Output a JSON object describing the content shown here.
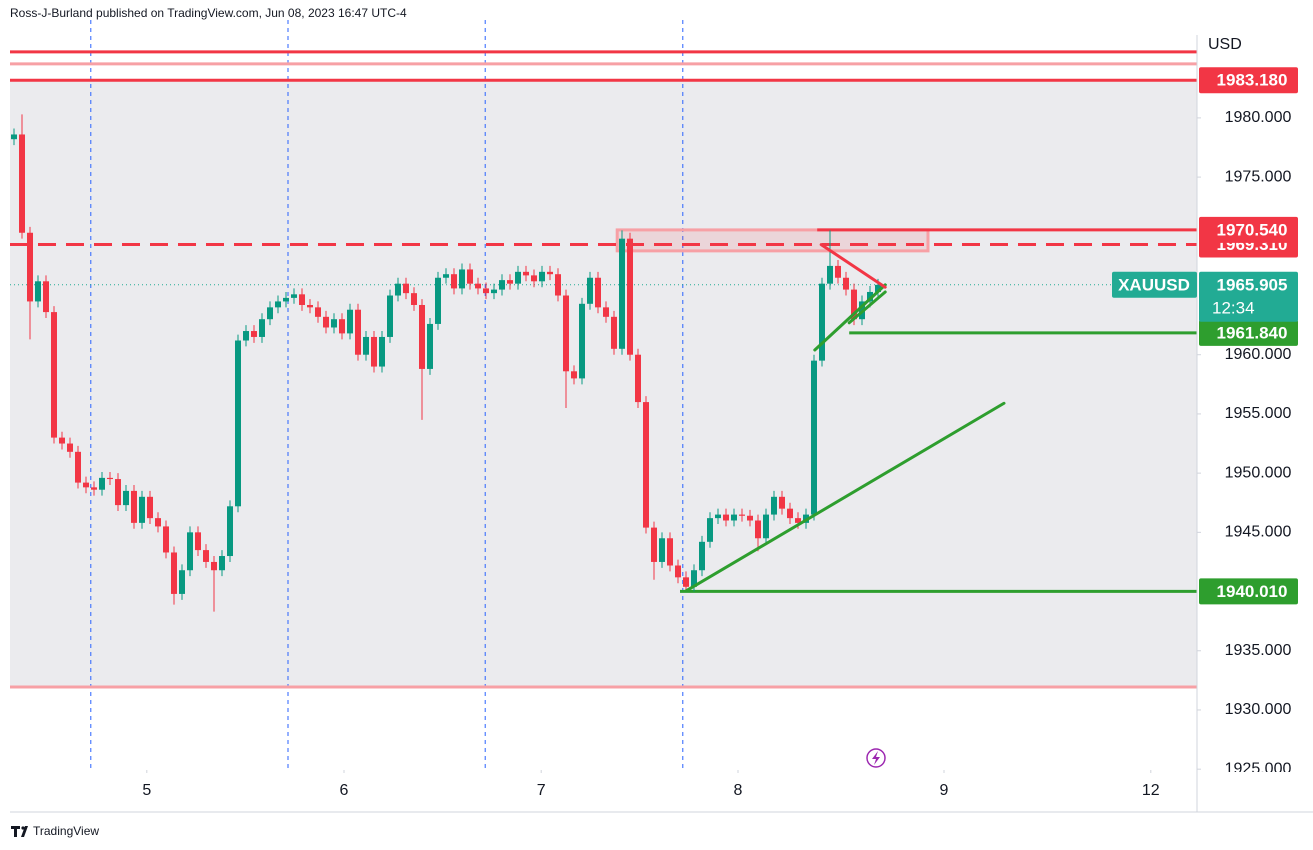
{
  "chart_data": {
    "type": "candlestick",
    "title": "Ross-J-Burland published on TradingView.com, Jun 08, 2023 16:47 UTC-4",
    "currency": "USD",
    "brand": "TradingView",
    "symbol": "XAUUSD",
    "countdown": "12:34",
    "last_price": {
      "value": 1965.905,
      "label": "1965.905"
    },
    "up_color": "#089981",
    "down_color": "#f23645",
    "last_color": "#22ab94",
    "open": [
      1978.2,
      1978.6,
      1970.3,
      1964.5,
      1966.2,
      1963.6,
      1953.0,
      1952.5,
      1951.8,
      1949.2,
      1948.8,
      1948.6,
      1949.6,
      1949.5,
      1947.3,
      1948.5,
      1945.8,
      1948.0,
      1946.2,
      1945.5,
      1943.3,
      1939.8,
      1941.8,
      1945.0,
      1943.5,
      1942.5,
      1941.8,
      1943.0,
      1947.2,
      1961.2,
      1962.0,
      1961.5,
      1963.0,
      1964.0,
      1964.5,
      1964.8,
      1965.1,
      1964.2,
      1964.0,
      1963.2,
      1962.3,
      1963.0,
      1961.8,
      1963.8,
      1960.0,
      1961.5,
      1959.0,
      1961.5,
      1965.0,
      1966.0,
      1965.2,
      1964.2,
      1958.8,
      1962.6,
      1966.5,
      1966.8,
      1965.6,
      1967.2,
      1966.0,
      1965.6,
      1965.2,
      1965.5,
      1966.3,
      1966.0,
      1967.0,
      1966.7,
      1966.2,
      1967.0,
      1966.8,
      1965.0,
      1958.6,
      1958.0,
      1964.3,
      1966.5,
      1964.0,
      1963.2,
      1960.5,
      1969.8,
      1960.0,
      1956.0,
      1945.4,
      1942.5,
      1944.5,
      1942.2,
      1941.2,
      1940.4,
      1941.8,
      1944.2,
      1946.2,
      1946.5,
      1946.0,
      1946.5,
      1946.4,
      1946.0,
      1944.5,
      1946.5,
      1948.0,
      1947.0,
      1946.2,
      1945.8,
      1946.5,
      1959.5,
      1966.0,
      1967.5,
      1966.5,
      1965.5,
      1963.0,
      1964.5,
      1965.3
    ],
    "high": [
      1979.1,
      1980.3,
      1970.8,
      1966.7,
      1966.7,
      1964.1,
      1953.5,
      1953.0,
      1952.3,
      1949.7,
      1949.3,
      1950.1,
      1950.1,
      1950.0,
      1949.0,
      1949.0,
      1948.5,
      1948.5,
      1946.7,
      1946.0,
      1943.8,
      1942.3,
      1945.5,
      1945.5,
      1944.0,
      1943.0,
      1943.5,
      1947.7,
      1961.7,
      1962.5,
      1962.5,
      1963.5,
      1964.5,
      1965.0,
      1965.3,
      1965.6,
      1965.6,
      1964.7,
      1964.5,
      1963.7,
      1963.5,
      1963.5,
      1964.3,
      1964.3,
      1962.0,
      1962.0,
      1962.0,
      1965.5,
      1966.5,
      1966.5,
      1965.7,
      1964.7,
      1963.1,
      1967.0,
      1967.3,
      1967.3,
      1967.7,
      1967.7,
      1966.5,
      1966.1,
      1966.0,
      1966.8,
      1966.8,
      1967.5,
      1967.5,
      1967.2,
      1967.5,
      1967.5,
      1967.3,
      1965.5,
      1959.1,
      1964.8,
      1967.0,
      1967.0,
      1964.5,
      1963.7,
      1970.5,
      1970.3,
      1960.5,
      1956.5,
      1945.9,
      1945.0,
      1945.0,
      1942.7,
      1941.7,
      1942.3,
      1944.7,
      1946.7,
      1947.0,
      1947.0,
      1947.0,
      1947.0,
      1946.9,
      1946.5,
      1947.0,
      1948.5,
      1948.5,
      1947.5,
      1946.7,
      1947.0,
      1960.0,
      1966.5,
      1970.5,
      1968.0,
      1967.0,
      1966.0,
      1965.0,
      1965.8,
      1966.4
    ],
    "low": [
      1977.7,
      1969.8,
      1961.3,
      1964.0,
      1963.1,
      1952.5,
      1952.0,
      1951.3,
      1948.7,
      1948.3,
      1948.1,
      1948.1,
      1949.0,
      1946.8,
      1946.8,
      1945.3,
      1945.3,
      1945.7,
      1945.0,
      1942.8,
      1938.9,
      1939.3,
      1941.3,
      1943.0,
      1942.0,
      1938.3,
      1941.3,
      1942.5,
      1946.7,
      1960.7,
      1961.0,
      1961.0,
      1962.5,
      1963.5,
      1964.0,
      1964.3,
      1963.7,
      1963.5,
      1962.7,
      1961.8,
      1961.8,
      1961.3,
      1961.3,
      1959.5,
      1959.5,
      1958.5,
      1958.5,
      1961.0,
      1964.5,
      1964.7,
      1963.7,
      1954.5,
      1958.3,
      1962.1,
      1966.0,
      1965.1,
      1965.1,
      1965.5,
      1965.1,
      1964.7,
      1964.7,
      1965.0,
      1965.5,
      1965.5,
      1966.2,
      1965.7,
      1965.7,
      1966.3,
      1964.5,
      1955.5,
      1957.5,
      1957.5,
      1963.8,
      1963.5,
      1962.7,
      1960.0,
      1960.0,
      1959.5,
      1955.5,
      1944.9,
      1941.0,
      1942.0,
      1941.7,
      1940.7,
      1940.0,
      1940.0,
      1941.3,
      1943.7,
      1945.7,
      1945.5,
      1945.5,
      1945.9,
      1945.5,
      1943.4,
      1944.0,
      1946.0,
      1946.5,
      1945.7,
      1945.3,
      1945.3,
      1946.0,
      1959.0,
      1965.5,
      1966.0,
      1965.0,
      1962.5,
      1962.5,
      1964.0,
      1964.8
    ],
    "close": [
      1978.6,
      1970.3,
      1964.5,
      1966.2,
      1963.6,
      1953.0,
      1952.5,
      1951.8,
      1949.2,
      1948.8,
      1948.6,
      1949.6,
      1949.5,
      1947.3,
      1948.5,
      1945.8,
      1948.0,
      1946.2,
      1945.5,
      1943.3,
      1939.8,
      1941.8,
      1945.0,
      1943.5,
      1942.5,
      1941.8,
      1943.0,
      1947.2,
      1961.2,
      1962.0,
      1961.5,
      1963.0,
      1964.0,
      1964.5,
      1964.8,
      1965.1,
      1964.2,
      1964.0,
      1963.2,
      1962.3,
      1963.0,
      1961.8,
      1963.8,
      1960.0,
      1961.5,
      1959.0,
      1961.5,
      1965.0,
      1966.0,
      1965.2,
      1964.2,
      1958.8,
      1962.6,
      1966.5,
      1966.8,
      1965.6,
      1967.2,
      1966.0,
      1965.6,
      1965.2,
      1965.5,
      1966.3,
      1966.0,
      1967.0,
      1966.7,
      1966.2,
      1967.0,
      1966.8,
      1965.0,
      1958.6,
      1958.0,
      1964.3,
      1966.5,
      1964.0,
      1963.2,
      1960.5,
      1969.8,
      1960.0,
      1956.0,
      1945.4,
      1942.5,
      1944.5,
      1942.2,
      1941.2,
      1940.4,
      1941.8,
      1944.2,
      1946.2,
      1946.5,
      1946.0,
      1946.5,
      1946.4,
      1946.0,
      1944.5,
      1946.5,
      1948.0,
      1947.0,
      1946.2,
      1945.8,
      1946.5,
      1959.5,
      1966.0,
      1967.5,
      1966.5,
      1965.5,
      1963.0,
      1964.5,
      1965.3,
      1965.9
    ],
    "xlim": [
      -0.5,
      147.875
    ],
    "xticks": [
      {
        "value": 16.6,
        "label": "5"
      },
      {
        "value": 41.25,
        "label": "6"
      },
      {
        "value": 65.9,
        "label": "7"
      },
      {
        "value": 90.5,
        "label": "8"
      },
      {
        "value": 116.25,
        "label": "9"
      },
      {
        "value": 142.1,
        "label": "12"
      }
    ],
    "session_lines": [
      9.6,
      34.25,
      58.9,
      83.6
    ],
    "ylim": [
      1924.93,
      1987.0
    ],
    "yticks": [
      {
        "value": 1925,
        "label": "1925.000"
      },
      {
        "value": 1930,
        "label": "1930.000"
      },
      {
        "value": 1935,
        "label": "1935.000"
      },
      {
        "value": 1945,
        "label": "1945.000"
      },
      {
        "value": 1950,
        "label": "1950.000"
      },
      {
        "value": 1955,
        "label": "1955.000"
      },
      {
        "value": 1960,
        "label": "1960.000"
      },
      {
        "value": 1975,
        "label": "1975.000"
      },
      {
        "value": 1980,
        "label": "1980.000"
      }
    ],
    "zone": [
      1931.94,
      1983.18
    ],
    "zone_color": "#ebebee",
    "levels": [
      {
        "value": 1985.57,
        "color": "#f23645"
      },
      {
        "value": 1984.56,
        "color": "#f7a0a5"
      },
      {
        "value": 1983.18,
        "label": "1983.180",
        "color": "#f23645"
      },
      {
        "value": 1931.94,
        "color": "#f7a0a5"
      },
      {
        "value": 1969.31,
        "label": "1969.310",
        "color": "#f23645",
        "dash": true
      },
      {
        "value": 1970.54,
        "label": "1970.540",
        "color": "#f23645",
        "start": 100.4
      },
      {
        "value": 1961.84,
        "label": "1961.840",
        "color": "#2e9e2e",
        "start": 104.4
      },
      {
        "value": 1940.01,
        "label": "1940.010",
        "color": "#2e9e2e",
        "start": 83.25
      }
    ],
    "box": {
      "x": [
        75.4,
        114.25
      ],
      "y": [
        1968.77,
        1970.54
      ]
    },
    "trendlines": [
      {
        "x": [
          84.0,
          123.75
        ],
        "y": [
          1940.05,
          1955.9
        ],
        "color": "#2e9e2e"
      },
      {
        "x": [
          100.1,
          108.9
        ],
        "y": [
          1960.4,
          1965.9
        ],
        "color": "#2e9e2e"
      },
      {
        "x": [
          104.4,
          108.9
        ],
        "y": [
          1962.7,
          1965.3
        ],
        "color": "#2e9e2e"
      },
      {
        "x": [
          100.9,
          108.9
        ],
        "y": [
          1969.3,
          1965.7
        ],
        "color": "#f23645"
      }
    ]
  }
}
